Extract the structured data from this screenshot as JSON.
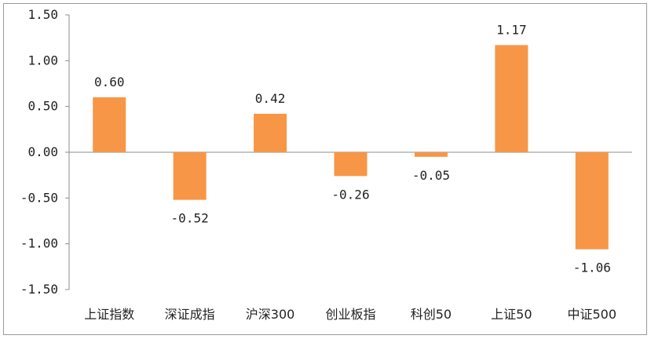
{
  "chart_data": {
    "type": "bar",
    "categories": [
      "上证指数",
      "深证成指",
      "沪深300",
      "创业板指",
      "科创50",
      "上证50",
      "中证500"
    ],
    "values": [
      0.6,
      -0.52,
      0.42,
      -0.26,
      -0.05,
      1.17,
      -1.06
    ],
    "value_labels": [
      "0.60",
      "-0.52",
      "0.42",
      "-0.26",
      "-0.05",
      "1.17",
      "-1.06"
    ],
    "yticks": [
      1.5,
      1.0,
      0.5,
      0.0,
      -0.5,
      -1.0,
      -1.5
    ],
    "ytick_labels": [
      "1.50",
      "1.00",
      "0.50",
      "0.00",
      "-0.50",
      "-1.00",
      "-1.50"
    ],
    "ylim": [
      -1.5,
      1.5
    ],
    "grid": false,
    "legend": "none",
    "bar_color": "#F79646",
    "axis_color": "#8c8c8c"
  }
}
